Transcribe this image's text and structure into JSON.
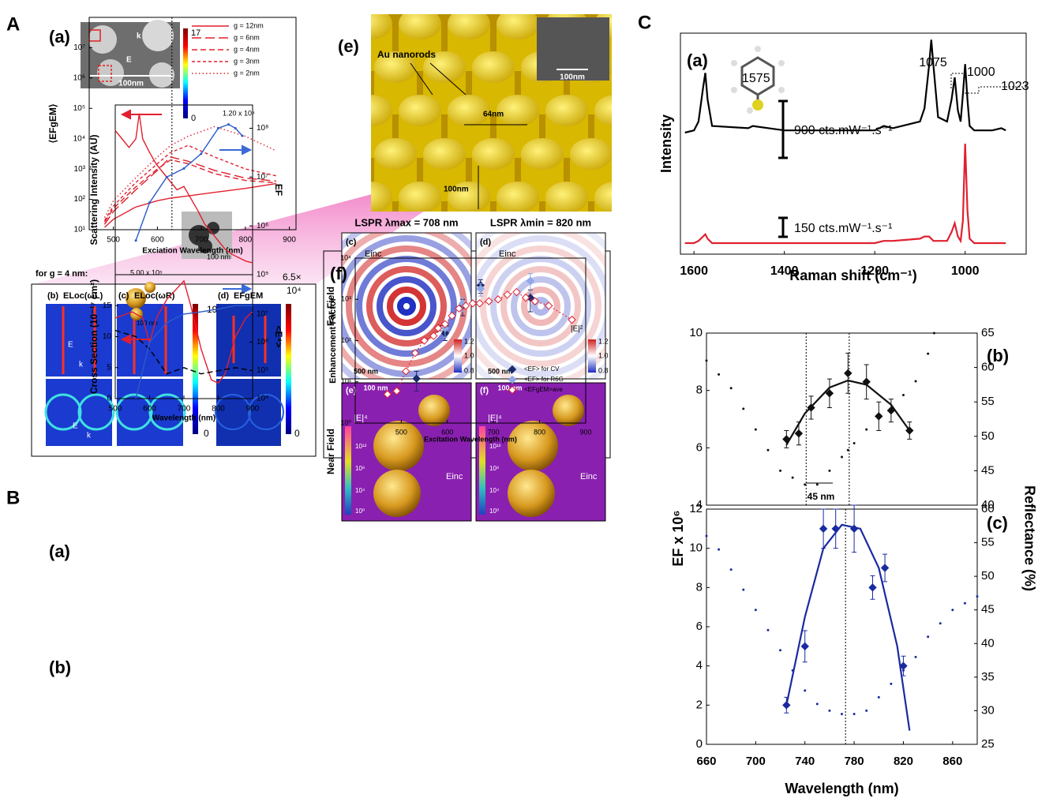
{
  "labels": {
    "A": "A",
    "B": "B",
    "C": "C",
    "a_a": "(a)",
    "a_b": "(b)",
    "a_c": "(c)",
    "a_d": "(d)",
    "a_e": "(e)",
    "a_f": "(f)",
    "inset_scale": "100nm",
    "inset_k": "k",
    "inset_E": "E",
    "cb1_max": "17",
    "cb1_min": "0",
    "g4": "for g = 4 nm:",
    "map_b": "ELoc(ωL)",
    "map_c": "ELoc(ωR)",
    "map_d": "EFgEM",
    "cb2_max": "19",
    "cb2_min": "0",
    "cb3_max": "6.5×",
    "cb3_exp": "10⁴",
    "cb3_min": "0",
    "map_E": "E",
    "map_k": "k",
    "e_rods": "Au nanorods",
    "e_64": "64nm",
    "e_100": "100nm",
    "e_scale": "100nm",
    "B_a": "(a)",
    "B_b": "(b)",
    "ba_top": "1.20 x 10⁸",
    "ba_bot": "5.00 x 10⁵",
    "scale_100": "100 nm",
    "lspr1": "LSPR λmax = 708 nm",
    "lspr2": "LSPR λmin = 820 nm",
    "far": "Far Field",
    "near": "Near Field",
    "pc": "(c)",
    "pd": "(d)",
    "pe": "(e)",
    "pf": "(f)",
    "einc": "Einc",
    "e2": "|E|²",
    "e4": "|E|⁴",
    "cb_12": "1.2",
    "cb_10": "1.0",
    "cb_08": "0.8",
    "s500": "500 nm",
    "n12": "10¹²",
    "n8": "10⁸",
    "n4": "10⁴",
    "n0": "10⁰",
    "C_a": "(a)",
    "C_b": "(b)",
    "C_c": "(c)",
    "p1575": "1575",
    "p1075": "1075",
    "p1000": "1000",
    "p1023": "1023",
    "c_900": "900 cts.mW⁻¹.s⁻¹",
    "c_150": "150 cts.mW⁻¹.s⁻¹",
    "c_45": "45 nm"
  },
  "chart_data": [
    {
      "type": "line",
      "xlabel": "Exciation Wavelength (nm)",
      "ylabel": "⟨EFgEM⟩",
      "xlim": [
        445,
        915
      ],
      "xticks": [
        500,
        600,
        700,
        800,
        900
      ],
      "ylim": [
        10,
        100000000
      ],
      "ylog": true,
      "yticks": [
        {
          "value": 10,
          "label": "10¹"
        },
        {
          "value": 100,
          "label": "10²"
        },
        {
          "value": 1000,
          "label": "10³"
        },
        {
          "value": 10000,
          "label": "10⁴"
        },
        {
          "value": 100000,
          "label": "10⁵"
        },
        {
          "value": 1000000,
          "label": "10⁶"
        },
        {
          "value": 10000000,
          "label": "10⁷"
        }
      ],
      "legend": "upper right",
      "vlines": [
        633
      ],
      "series": [
        {
          "name": "g = 12nm",
          "color": "#e0202f",
          "style": "solid",
          "x": [
            480,
            500,
            550,
            600,
            630,
            670,
            730,
            800,
            870
          ],
          "values": [
            12,
            22,
            55,
            90,
            110,
            130,
            170,
            230,
            330
          ]
        },
        {
          "name": "g = 6nm",
          "color": "#e0202f",
          "style": "long-dash",
          "x": [
            480,
            500,
            550,
            600,
            630,
            670,
            730,
            800,
            870
          ],
          "values": [
            15,
            40,
            200,
            900,
            2500,
            1800,
            900,
            500,
            400
          ]
        },
        {
          "name": "g = 4nm",
          "color": "#e0202f",
          "style": "dash",
          "x": [
            480,
            500,
            550,
            600,
            630,
            670,
            730,
            800,
            870
          ],
          "values": [
            18,
            50,
            250,
            1000,
            2000,
            1500,
            700,
            420,
            350
          ]
        },
        {
          "name": "g = 3nm",
          "color": "#e0202f",
          "style": "short-dash",
          "x": [
            480,
            500,
            550,
            600,
            630,
            670,
            730,
            800,
            870
          ],
          "values": [
            20,
            60,
            350,
            1500,
            3500,
            6000,
            2500,
            1000,
            600
          ]
        },
        {
          "name": "g = 2nm",
          "color": "#e0202f",
          "style": "dot",
          "x": [
            480,
            500,
            550,
            600,
            630,
            670,
            730,
            800,
            870
          ],
          "values": [
            25,
            90,
            500,
            2500,
            6000,
            12000,
            25000,
            12000,
            4000
          ]
        }
      ]
    },
    {
      "type": "scatter",
      "xlabel": "Excitation Wavelength (nm)",
      "ylabel": "Enhancement Factor",
      "xlim": [
        400,
        900
      ],
      "xticks": [
        500,
        600,
        700,
        800,
        900
      ],
      "ylim": [
        1,
        10000
      ],
      "ylog": true,
      "yticks": [
        {
          "value": 1,
          "label": "10⁰"
        },
        {
          "value": 10,
          "label": "10¹"
        },
        {
          "value": 100,
          "label": "10²"
        },
        {
          "value": 1000,
          "label": "10³"
        },
        {
          "value": 10000,
          "label": "10⁴"
        }
      ],
      "legend": "lower right",
      "series": [
        {
          "name": "<EF> for CV",
          "color": "#1a2a6c",
          "style": "none",
          "marker": "diamond",
          "x": [
            533,
            595,
            633,
            672,
            780
          ],
          "values": [
            12,
            150,
            700,
            2200,
            1100
          ],
          "errors": [
            6,
            50,
            300,
            800,
            600
          ]
        },
        {
          "name": "<EF> for R6G",
          "color": "#8fa8e8",
          "style": "none",
          "marker": "diamond",
          "x": [
            595,
            633,
            672,
            780
          ],
          "values": [
            200,
            800,
            1800,
            2800
          ],
          "errors": [
            80,
            300,
            600,
            1400
          ]
        },
        {
          "name": "<EFgEM>ave",
          "color": "#e0202f",
          "style": "dot",
          "marker": "open-diamond",
          "x": [
            470,
            490,
            510,
            530,
            550,
            570,
            580,
            595,
            610,
            625,
            640,
            655,
            670,
            690,
            710,
            730,
            750,
            770,
            790,
            820,
            870
          ],
          "values": [
            5,
            6,
            18,
            50,
            100,
            130,
            200,
            250,
            400,
            600,
            700,
            800,
            800,
            900,
            1000,
            1300,
            1500,
            1100,
            900,
            700,
            320
          ]
        }
      ]
    },
    {
      "type": "line",
      "ylabel": "Scattering Intensity (AU)",
      "y2label": "EF",
      "xlim": [
        500,
        900
      ],
      "ylim": [
        0,
        1
      ],
      "y2lim": [
        100000,
        300000000
      ],
      "y2log": true,
      "y2ticks": [
        {
          "value": 100000,
          "label": "10⁵"
        },
        {
          "value": 1000000,
          "label": "10⁶"
        },
        {
          "value": 10000000,
          "label": "10⁷"
        },
        {
          "value": 100000000,
          "label": "10⁸"
        }
      ],
      "series": [
        {
          "color": "#e0202f",
          "style": "solid",
          "x": [
            500,
            520,
            540,
            560,
            570,
            580,
            600,
            620,
            640,
            660,
            680,
            700,
            720,
            740,
            760,
            780,
            800,
            820,
            840,
            860,
            880,
            900
          ],
          "values": [
            0.85,
            0.8,
            0.75,
            0.8,
            0.95,
            0.8,
            0.72,
            0.65,
            0.6,
            0.55,
            0.5,
            0.52,
            0.45,
            0.38,
            0.3,
            0.25,
            0.2,
            0.15,
            0.12,
            0.1,
            0.08,
            0.07
          ]
        },
        {
          "color": "#2a5cc8",
          "style": "solid",
          "marker": "dot",
          "axis": "y2",
          "x": [
            560,
            600,
            650,
            700,
            750,
            800,
            830,
            850,
            870
          ],
          "values": [
            500000,
            3000000,
            10000000,
            15000000,
            30000000,
            100000000,
            120000000,
            100000000,
            70000000
          ]
        }
      ]
    },
    {
      "type": "line",
      "xlabel": "Wavelength (nm)",
      "ylabel": "Cross Section (10⁻¹⁷ cm²)",
      "y2label": "<E⁴>",
      "xlim": [
        500,
        900
      ],
      "xticks": [
        500,
        600,
        700,
        800,
        900
      ],
      "ylim": [
        0,
        20
      ],
      "yticks": [
        0,
        5,
        10,
        15
      ],
      "y2lim": [
        10000,
        250000000
      ],
      "y2log": true,
      "y2ticks": [
        {
          "value": 10000,
          "label": "10⁴"
        },
        {
          "value": 100000,
          "label": "10⁵"
        },
        {
          "value": 1000000,
          "label": "10⁶"
        },
        {
          "value": 10000000,
          "label": "10⁷"
        }
      ],
      "series": [
        {
          "color": "#e0202f",
          "style": "solid",
          "x": [
            500,
            550,
            580,
            600,
            620,
            650,
            700,
            720,
            750,
            780,
            800,
            820,
            850,
            880,
            900
          ],
          "values": [
            13,
            14,
            13,
            9,
            13,
            16,
            19,
            15,
            8,
            3,
            2.5,
            4,
            10,
            13,
            14
          ]
        },
        {
          "color": "#000000",
          "style": "dash",
          "x": [
            500,
            560,
            600,
            650,
            700,
            750,
            800,
            850,
            900
          ],
          "values": [
            11,
            10,
            8,
            4,
            5,
            4,
            4.5,
            5,
            4.5
          ]
        },
        {
          "color": "#2a5cc8",
          "style": "solid",
          "axis": "y2",
          "x": [
            560,
            580,
            600,
            650,
            700,
            750,
            800,
            850,
            900
          ],
          "values": [
            10000,
            100000,
            1000000,
            5000000,
            10000000,
            12000000,
            15000000,
            20000000,
            20000000
          ]
        }
      ]
    },
    {
      "type": "line",
      "xlabel": "Raman shift (cm⁻¹)",
      "ylabel": "Intensity",
      "xlim": [
        1630,
        865
      ],
      "xticks": [
        1600,
        1400,
        1200,
        1000
      ],
      "ylim": [
        0,
        1
      ],
      "series": [
        {
          "color": "#000000",
          "style": "solid",
          "x": [
            1620,
            1600,
            1590,
            1580,
            1575,
            1570,
            1560,
            1480,
            1470,
            1400,
            1300,
            1200,
            1180,
            1160,
            1100,
            1090,
            1080,
            1075,
            1070,
            1060,
            1040,
            1030,
            1023,
            1016,
            1010,
            1005,
            1000,
            995,
            990,
            980,
            960,
            940,
            920,
            910
          ],
          "values": [
            0.55,
            0.56,
            0.6,
            0.75,
            0.82,
            0.7,
            0.58,
            0.57,
            0.58,
            0.56,
            0.56,
            0.56,
            0.58,
            0.57,
            0.6,
            0.66,
            0.85,
            0.97,
            0.85,
            0.62,
            0.6,
            0.7,
            0.8,
            0.65,
            0.6,
            0.72,
            0.86,
            0.7,
            0.58,
            0.56,
            0.56,
            0.56,
            0.57,
            0.56
          ]
        },
        {
          "color": "#e0202f",
          "style": "solid",
          "x": [
            1620,
            1600,
            1590,
            1580,
            1575,
            1570,
            1560,
            1480,
            1470,
            1400,
            1300,
            1200,
            1180,
            1160,
            1100,
            1090,
            1080,
            1075,
            1070,
            1060,
            1040,
            1030,
            1023,
            1016,
            1010,
            1005,
            1000,
            995,
            990,
            980,
            960,
            940,
            920,
            910
          ],
          "values": [
            0.05,
            0.05,
            0.06,
            0.08,
            0.09,
            0.07,
            0.05,
            0.05,
            0.05,
            0.05,
            0.05,
            0.05,
            0.06,
            0.06,
            0.07,
            0.08,
            0.08,
            0.07,
            0.06,
            0.06,
            0.06,
            0.1,
            0.14,
            0.08,
            0.06,
            0.15,
            0.5,
            0.2,
            0.07,
            0.05,
            0.05,
            0.05,
            0.05,
            0.05
          ]
        }
      ]
    },
    {
      "type": "line",
      "xlim": [
        660,
        880
      ],
      "ylim": [
        4,
        10
      ],
      "yticks": [
        4,
        6,
        8,
        10
      ],
      "y2lim": [
        40,
        65
      ],
      "y2ticks": [
        40,
        45,
        50,
        55,
        60,
        65
      ],
      "vlines": [
        741,
        776
      ],
      "series": [
        {
          "color": "#111111",
          "style": "none",
          "marker": "diamond",
          "x": [
            725,
            735,
            745,
            760,
            775,
            790,
            800,
            810,
            825
          ],
          "values": [
            6.3,
            6.5,
            7.4,
            7.9,
            8.6,
            8.3,
            7.1,
            7.3,
            6.6
          ],
          "errors": [
            0.3,
            0.4,
            0.4,
            0.5,
            0.7,
            0.6,
            0.5,
            0.4,
            0.3
          ]
        },
        {
          "color": "#111111",
          "style": "solid",
          "x": [
            725,
            740,
            760,
            775,
            790,
            810,
            825
          ],
          "values": [
            6.1,
            7.2,
            8.1,
            8.35,
            8.2,
            7.5,
            6.6
          ]
        },
        {
          "color": "#111111",
          "style": "none",
          "marker": "dot",
          "axis": "y2",
          "x": [
            660,
            670,
            680,
            690,
            700,
            710,
            720,
            730,
            740,
            750,
            760,
            770,
            775,
            780,
            790,
            800,
            810,
            820,
            830,
            840,
            845
          ],
          "values": [
            61,
            59,
            57,
            54,
            51,
            48,
            45,
            44,
            43,
            43,
            45,
            47,
            48,
            49,
            51,
            53,
            54,
            56,
            58,
            62,
            65
          ]
        }
      ]
    },
    {
      "type": "line",
      "xlabel": "Wavelength (nm)",
      "ylabel": "EF x 10⁶",
      "y2label": "Reflectance (%)",
      "xlim": [
        660,
        880
      ],
      "xticks": [
        660,
        700,
        740,
        780,
        820,
        860
      ],
      "ylim": [
        0,
        12
      ],
      "yticks": [
        0,
        2,
        4,
        6,
        8,
        10,
        12
      ],
      "y2lim": [
        25,
        60
      ],
      "y2ticks": [
        25,
        30,
        35,
        40,
        45,
        50,
        55,
        60
      ],
      "vlines": [
        773
      ],
      "series": [
        {
          "color": "#1a2aa0",
          "style": "none",
          "marker": "diamond",
          "x": [
            725,
            740,
            755,
            765,
            780,
            795,
            805,
            820
          ],
          "values": [
            2,
            5,
            11,
            11,
            11,
            8,
            9,
            4
          ],
          "errors": [
            0.4,
            0.8,
            1,
            1,
            1.2,
            0.6,
            0.7,
            0.5
          ]
        },
        {
          "color": "#1a2aa0",
          "style": "solid",
          "x": [
            725,
            740,
            755,
            770,
            785,
            800,
            815,
            825
          ],
          "values": [
            2,
            6.5,
            10,
            11.2,
            11,
            9,
            5,
            0.7
          ]
        },
        {
          "color": "#1a2aa0",
          "style": "none",
          "marker": "dot",
          "axis": "y2",
          "x": [
            660,
            670,
            680,
            690,
            700,
            710,
            720,
            730,
            740,
            750,
            760,
            770,
            780,
            790,
            800,
            810,
            820,
            830,
            840,
            850,
            860,
            870,
            880
          ],
          "values": [
            56,
            54,
            51,
            48,
            45,
            42,
            39,
            36,
            33,
            31,
            30,
            29.5,
            29.5,
            30,
            32,
            34,
            36,
            38,
            41,
            43,
            45,
            46,
            47
          ]
        }
      ]
    }
  ]
}
